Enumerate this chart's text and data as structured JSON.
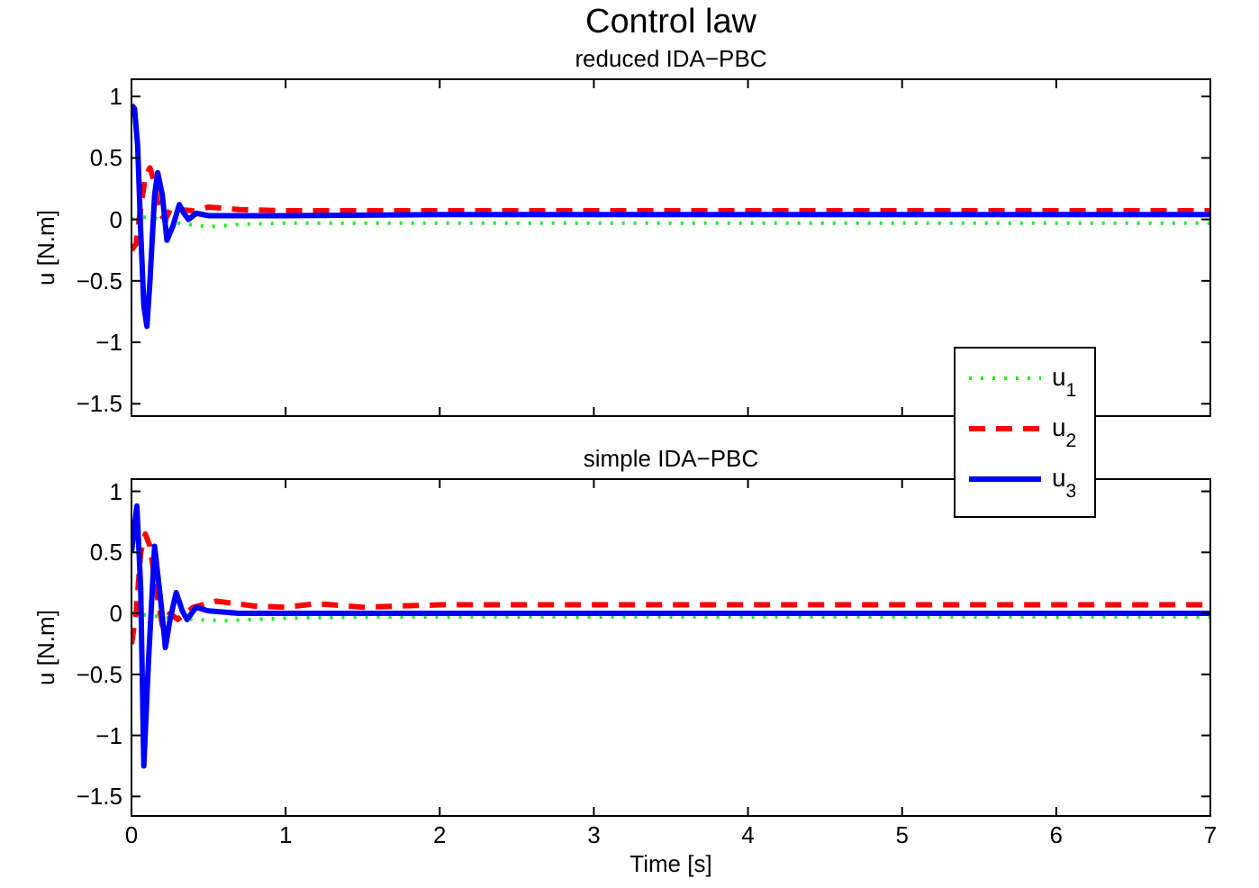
{
  "chart_data": [
    {
      "type": "line",
      "title": "Control law",
      "subtitle": "reduced IDA−PBC",
      "ylabel": "u [N.m]",
      "xlim": [
        0,
        7
      ],
      "xticks": [
        0,
        1,
        2,
        3,
        4,
        5,
        6,
        7
      ],
      "ylim": [
        -1.6,
        1.14
      ],
      "yticks": [
        {
          "value": -1.5,
          "label": "−1.5"
        },
        {
          "value": -1,
          "label": "−1"
        },
        {
          "value": -0.5,
          "label": "−0.5"
        },
        0,
        0.5,
        1
      ],
      "tick_labels": "y",
      "legend": "bottom right",
      "grid": false,
      "series": [
        {
          "name": "u$_{1}$",
          "color": "#22ee22",
          "line_style": "dotted",
          "x": [
            0,
            0.1,
            0.2,
            0.3,
            0.5,
            0.7,
            1,
            1.5,
            2,
            3,
            4,
            5,
            6,
            7
          ],
          "values": [
            0,
            0.02,
            0,
            -0.03,
            -0.06,
            -0.04,
            -0.03,
            -0.03,
            -0.03,
            -0.03,
            -0.03,
            -0.03,
            -0.03,
            -0.03
          ]
        },
        {
          "name": "u$_{2}$",
          "color": "#ff0000",
          "line_style": "dashed",
          "x": [
            0,
            0.03,
            0.06,
            0.09,
            0.12,
            0.15,
            0.18,
            0.22,
            0.26,
            0.3,
            0.4,
            0.5,
            0.7,
            1,
            2,
            3,
            4,
            5,
            6,
            7
          ],
          "values": [
            -0.25,
            -0.2,
            0.1,
            0.35,
            0.42,
            0.3,
            0.05,
            0,
            0.1,
            0.08,
            0.07,
            0.1,
            0.08,
            0.07,
            0.07,
            0.07,
            0.07,
            0.07,
            0.07,
            0.07
          ]
        },
        {
          "name": "u$_{3}$",
          "color": "#0000ff",
          "line_style": "solid",
          "x": [
            0,
            0.02,
            0.04,
            0.06,
            0.08,
            0.1,
            0.12,
            0.15,
            0.17,
            0.2,
            0.23,
            0.27,
            0.31,
            0.34,
            0.37,
            0.42,
            0.5,
            0.7,
            1,
            2,
            3,
            4,
            5,
            6,
            7
          ],
          "values": [
            0.93,
            0.9,
            0.6,
            -0.1,
            -0.7,
            -0.87,
            -0.5,
            0.2,
            0.38,
            0.2,
            -0.17,
            -0.05,
            0.12,
            0.05,
            0,
            0.05,
            0.03,
            0.03,
            0.03,
            0.04,
            0.04,
            0.04,
            0.04,
            0.04,
            0.04
          ]
        }
      ]
    },
    {
      "type": "line",
      "title": "simple IDA−PBC",
      "xlabel": "Time [s]",
      "ylabel": "u [N.m]",
      "xlim": [
        0,
        7
      ],
      "xticks": [
        0,
        1,
        2,
        3,
        4,
        5,
        6,
        7
      ],
      "ylim": [
        -1.66,
        1.1
      ],
      "yticks": [
        {
          "value": -1.5,
          "label": "−1.5"
        },
        {
          "value": -1,
          "label": "−1"
        },
        {
          "value": -0.5,
          "label": "−0.5"
        },
        0,
        0.5,
        1
      ],
      "grid": false,
      "series": [
        {
          "color": "#22ee22",
          "line_style": "dotted",
          "x": [
            0,
            0.2,
            0.4,
            0.6,
            0.8,
            1,
            1.5,
            2,
            3,
            4,
            5,
            6,
            7
          ],
          "values": [
            0,
            -0.03,
            -0.05,
            -0.06,
            -0.05,
            -0.04,
            -0.03,
            -0.03,
            -0.03,
            -0.03,
            -0.03,
            -0.03,
            -0.03
          ]
        },
        {
          "color": "#ff0000",
          "line_style": "dashed",
          "x": [
            0,
            0.03,
            0.06,
            0.09,
            0.12,
            0.16,
            0.2,
            0.25,
            0.3,
            0.4,
            0.55,
            0.8,
            1,
            1.2,
            1.5,
            2,
            3,
            4,
            5,
            6,
            7
          ],
          "values": [
            -0.25,
            0,
            0.5,
            0.65,
            0.55,
            0.2,
            -0.1,
            0,
            -0.05,
            0.05,
            0.1,
            0.06,
            0.05,
            0.08,
            0.05,
            0.07,
            0.07,
            0.07,
            0.07,
            0.07,
            0.07
          ]
        },
        {
          "color": "#0000ff",
          "line_style": "solid",
          "x": [
            0,
            0.035,
            0.06,
            0.08,
            0.11,
            0.15,
            0.19,
            0.22,
            0.25,
            0.29,
            0.33,
            0.36,
            0.42,
            0.5,
            0.7,
            1,
            2,
            3,
            4,
            5,
            6,
            7
          ],
          "values": [
            0.5,
            0.88,
            0.2,
            -1.25,
            -0.4,
            0.55,
            0.1,
            -0.28,
            -0.05,
            0.17,
            0.02,
            -0.05,
            0.05,
            0.02,
            0,
            0,
            0,
            0,
            0,
            0,
            0,
            0
          ]
        }
      ]
    }
  ]
}
